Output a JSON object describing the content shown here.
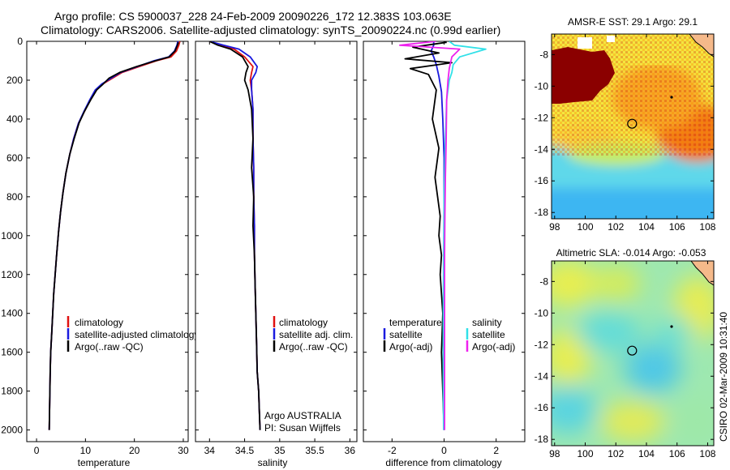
{
  "header": {
    "line1": "Argo profile: CS 5900037_228 24-Feb-2009 20090226_172 12.383S 103.063E",
    "line2": "Climatology: CARS2006. Satellite-adjusted climatology: synTS_20090224.nc (0.99d earlier)"
  },
  "credit": "CSIRO 02-Mar-2009 10:31:40",
  "colors": {
    "climatology": "#e01010",
    "satellite": "#1a1adf",
    "argo": "#000000",
    "sal_satellite": "#30e0e8",
    "sal_argo": "#ee22ee",
    "land": "#f5b98a"
  },
  "chart_data": [
    {
      "type": "line",
      "panel": "temperature",
      "xlabel": "temperature",
      "ylabel": "",
      "xlim": [
        -2,
        31
      ],
      "ylim": [
        2060,
        0
      ],
      "xticks": [
        "0",
        "10",
        "20",
        "30"
      ],
      "xtick_values": [
        0,
        10,
        20,
        30
      ],
      "yticks": [
        "0",
        "200",
        "400",
        "600",
        "800",
        "1000",
        "1200",
        "1400",
        "1600",
        "1800",
        "2000"
      ],
      "ytick_values": [
        0,
        200,
        400,
        600,
        800,
        1000,
        1200,
        1400,
        1600,
        1800,
        2000
      ],
      "legend": [
        "climatology",
        "satellite-adjusted climatology",
        "Argo(..raw -QC)"
      ],
      "series": [
        {
          "name": "climatology",
          "color": "#e01010",
          "x": [
            29.3,
            29.1,
            28.6,
            27.5,
            24.5,
            21.0,
            17.5,
            15.5,
            13.5,
            12.2,
            11.0,
            9.8,
            8.6,
            7.6,
            6.8,
            6.0,
            5.4,
            4.9,
            4.5,
            4.1,
            3.8,
            3.5,
            3.3,
            3.1,
            2.9,
            2.8,
            2.7,
            2.6
          ],
          "y": [
            0,
            20,
            50,
            80,
            100,
            130,
            160,
            190,
            220,
            250,
            300,
            360,
            420,
            500,
            580,
            680,
            780,
            880,
            980,
            1100,
            1200,
            1300,
            1400,
            1500,
            1600,
            1700,
            1850,
            2000
          ]
        },
        {
          "name": "satellite-adjusted",
          "color": "#1a1adf",
          "x": [
            28.9,
            28.7,
            28.2,
            27.0,
            24.0,
            20.6,
            17.2,
            15.2,
            13.3,
            12.0,
            10.9,
            9.7,
            8.6,
            7.6,
            6.8,
            6.0,
            5.4,
            4.9,
            4.5,
            4.1,
            3.8,
            3.5,
            3.3,
            3.1,
            2.9,
            2.8,
            2.7,
            2.6
          ],
          "y": [
            0,
            20,
            50,
            80,
            100,
            130,
            160,
            190,
            220,
            250,
            300,
            360,
            420,
            500,
            580,
            680,
            780,
            880,
            980,
            1100,
            1200,
            1300,
            1400,
            1500,
            1600,
            1700,
            1850,
            2000
          ]
        },
        {
          "name": "Argo(..raw -QC)",
          "color": "#000000",
          "x": [
            29.0,
            28.8,
            28.3,
            27.1,
            24.3,
            20.4,
            17.0,
            14.8,
            13.6,
            12.3,
            11.1,
            9.8,
            8.7,
            7.7,
            6.8,
            6.0,
            5.4,
            4.9,
            4.5,
            4.1,
            3.8,
            3.5,
            3.3,
            3.1,
            2.9,
            2.8,
            2.7,
            2.6
          ],
          "y": [
            5,
            20,
            50,
            80,
            100,
            130,
            160,
            190,
            220,
            250,
            300,
            360,
            420,
            500,
            580,
            680,
            780,
            880,
            980,
            1100,
            1200,
            1300,
            1400,
            1500,
            1600,
            1700,
            1850,
            2000
          ]
        }
      ]
    },
    {
      "type": "line",
      "panel": "salinity",
      "xlabel": "salinity",
      "xlim": [
        33.8,
        36.1
      ],
      "ylim": [
        2060,
        0
      ],
      "xticks": [
        "34",
        "34.5",
        "35",
        "35.5",
        "36"
      ],
      "xtick_values": [
        34,
        34.5,
        35,
        35.5,
        36
      ],
      "legend": [
        "climatology",
        "satellite adj. clim.",
        "Argo(..raw -QC)"
      ],
      "annotation": [
        "Argo AUSTRALIA",
        "PI: Susan Wijffels"
      ],
      "series": [
        {
          "name": "climatology",
          "color": "#e01010",
          "x": [
            34.0,
            34.15,
            34.35,
            34.5,
            34.62,
            34.6,
            34.58,
            34.6,
            34.62,
            34.62,
            34.63,
            34.63,
            34.64,
            34.64,
            34.65,
            34.66,
            34.67,
            34.68,
            34.7,
            34.71,
            34.72
          ],
          "y": [
            0,
            20,
            40,
            80,
            130,
            160,
            200,
            250,
            350,
            500,
            650,
            800,
            950,
            1100,
            1250,
            1400,
            1550,
            1700,
            1800,
            1900,
            2000
          ]
        },
        {
          "name": "satellite adj. clim.",
          "color": "#1a1adf",
          "x": [
            34.0,
            34.2,
            34.42,
            34.58,
            34.68,
            34.66,
            34.6,
            34.6,
            34.62,
            34.62,
            34.63,
            34.63,
            34.64,
            34.64,
            34.65,
            34.66,
            34.67,
            34.68,
            34.7,
            34.71,
            34.72
          ],
          "y": [
            0,
            20,
            40,
            80,
            130,
            160,
            200,
            250,
            350,
            500,
            650,
            800,
            950,
            1100,
            1250,
            1400,
            1550,
            1700,
            1800,
            1900,
            2000
          ]
        },
        {
          "name": "Argo(..raw -QC)",
          "color": "#000000",
          "x": [
            34.0,
            34.12,
            34.3,
            34.47,
            34.55,
            34.52,
            34.5,
            34.55,
            34.6,
            34.62,
            34.6,
            34.63,
            34.62,
            34.64,
            34.65,
            34.66,
            34.67,
            34.68,
            34.7,
            34.71,
            34.72
          ],
          "y": [
            0,
            20,
            40,
            80,
            130,
            160,
            200,
            250,
            350,
            500,
            650,
            800,
            950,
            1100,
            1250,
            1400,
            1550,
            1700,
            1800,
            1900,
            2000
          ]
        }
      ]
    },
    {
      "type": "line",
      "panel": "difference",
      "xlabel": "difference from climatology",
      "xlim": [
        -3.1,
        3.1
      ],
      "ylim": [
        2060,
        0
      ],
      "xticks": [
        "-2",
        "0",
        "2"
      ],
      "xtick_values": [
        -2,
        0,
        2
      ],
      "legend_left": [
        "temperature",
        "satellite",
        "Argo(-adj)"
      ],
      "legend_right": [
        "salinity",
        "satellite",
        "Argo(-adj)"
      ],
      "series": [
        {
          "name": "temperature satellite",
          "color": "#1a1adf",
          "x": [
            -0.4,
            -0.4,
            -0.5,
            -0.4,
            -0.3,
            -0.2,
            -0.1,
            -0.05,
            0,
            0,
            0,
            0,
            0,
            0,
            0
          ],
          "y": [
            0,
            20,
            50,
            80,
            120,
            180,
            260,
            400,
            600,
            800,
            1000,
            1200,
            1500,
            1800,
            2000
          ]
        },
        {
          "name": "temperature Argo(-adj)",
          "color": "#000000",
          "x": [
            0.1,
            -1.2,
            -0.2,
            -1.5,
            0.3,
            -1.3,
            -0.6,
            -0.3,
            -0.45,
            -0.2,
            -0.35,
            -0.25,
            -0.15,
            -0.2,
            -0.1,
            -0.15,
            -0.05,
            -0.1,
            -0.05,
            0
          ],
          "y": [
            5,
            30,
            60,
            90,
            110,
            140,
            170,
            250,
            400,
            550,
            700,
            800,
            900,
            1000,
            1100,
            1200,
            1400,
            1600,
            1800,
            2000
          ]
        },
        {
          "name": "salinity satellite",
          "color": "#30e0e8",
          "x": [
            0.2,
            0.4,
            1.6,
            0.6,
            0.35,
            0.3,
            0.2,
            0.1,
            0.05,
            0,
            -0.02,
            -0.03,
            -0.03,
            -0.03,
            -0.02
          ],
          "y": [
            0,
            20,
            40,
            80,
            120,
            160,
            200,
            300,
            500,
            800,
            1100,
            1400,
            1600,
            1800,
            2000
          ]
        },
        {
          "name": "salinity Argo(-adj)",
          "color": "#ee22ee",
          "x": [
            -0.3,
            -1.7,
            0.6,
            0.3,
            0.2,
            0.15,
            0.1,
            0.08,
            0.05,
            0.03,
            0.02,
            0.02,
            0.02,
            0.02,
            0.02
          ],
          "y": [
            0,
            20,
            40,
            80,
            140,
            200,
            300,
            500,
            700,
            900,
            1100,
            1400,
            1600,
            1800,
            2000
          ]
        }
      ]
    },
    {
      "type": "heatmap",
      "panel": "sst-map",
      "title": "AMSR-E SST: 29.1 Argo: 29.1",
      "xlim": [
        97.8,
        108.4
      ],
      "ylim": [
        -18.4,
        -6.7
      ],
      "xticks": [
        "98",
        "100",
        "102",
        "104",
        "106",
        "108"
      ],
      "xtick_values": [
        98,
        100,
        102,
        104,
        106,
        108
      ],
      "yticks": [
        "-8",
        "-10",
        "-12",
        "-14",
        "-16",
        "-18"
      ],
      "ytick_values": [
        -8,
        -10,
        -12,
        -14,
        -16,
        -18
      ],
      "argo_position": {
        "lon": 103.063,
        "lat": -12.383
      }
    },
    {
      "type": "heatmap",
      "panel": "sla-map",
      "title": "Altimetric SLA: -0.014 Argo: -0.053",
      "xlim": [
        97.8,
        108.4
      ],
      "ylim": [
        -18.4,
        -6.7
      ],
      "xticks": [
        "98",
        "100",
        "102",
        "104",
        "106",
        "108"
      ],
      "xtick_values": [
        98,
        100,
        102,
        104,
        106,
        108
      ],
      "yticks": [
        "-8",
        "-10",
        "-12",
        "-14",
        "-16",
        "-18"
      ],
      "ytick_values": [
        -8,
        -10,
        -12,
        -14,
        -16,
        -18
      ],
      "argo_position": {
        "lon": 103.063,
        "lat": -12.383
      }
    }
  ]
}
